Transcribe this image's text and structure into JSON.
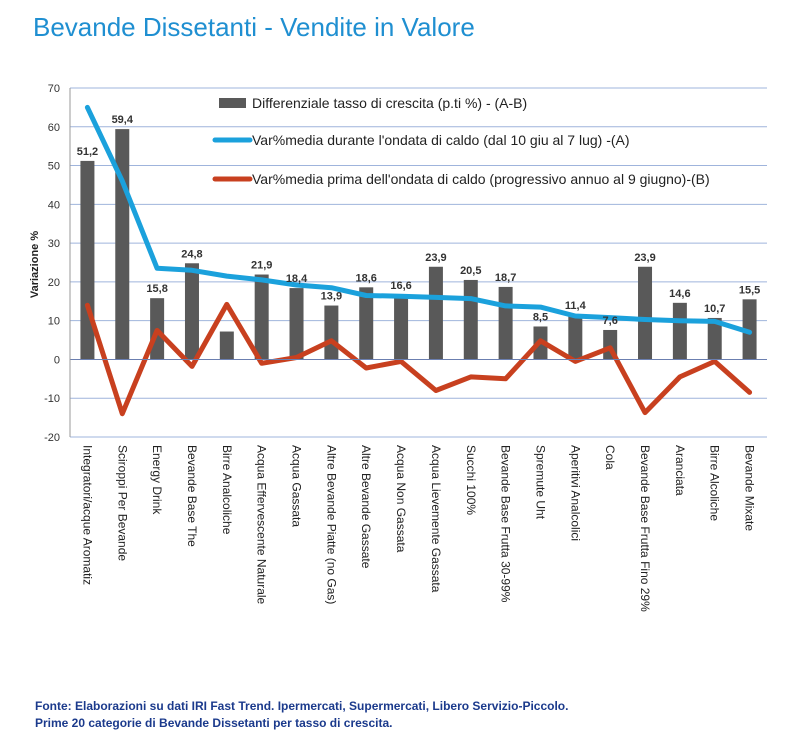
{
  "title": "Bevande Dissetanti - Vendite in Valore",
  "chart_data": {
    "type": "bar",
    "ylabel": "Variazione %",
    "ylim": [
      -20,
      70
    ],
    "yticks": [
      70,
      60,
      50,
      40,
      30,
      20,
      10,
      0,
      -10,
      -20
    ],
    "grid": true,
    "legend_position": "top",
    "categories": [
      "Integratori/acque Aromatiz",
      "Sciroppi Per Bevande",
      "Energy Drink",
      "Bevande Base The",
      "Birre Analcoliche",
      "Acqua Effervescente Naturale",
      "Acqua Gassata",
      "Altre Bevande Piatte (no Gas)",
      "Altre Bevande Gassate",
      "Acqua Non Gassata",
      "Acqua Lievemente Gassata",
      "Succhi 100%",
      "Bevande Base Frutta 30-99%",
      "Spremute Uht",
      "Aperitivi Analcolici",
      "Cola",
      "Bevande Base Frutta Fino 29%",
      "Aranciata",
      "Birre Alcoliche",
      "Bevande Mixate"
    ],
    "series": [
      {
        "name": "Differenziale tasso di crescita (p.ti %) - (A-B)",
        "type": "bar",
        "color": "#595959",
        "values": [
          51.2,
          59.4,
          15.8,
          24.8,
          7.2,
          21.9,
          18.4,
          13.9,
          18.6,
          16.6,
          23.9,
          20.5,
          18.7,
          8.5,
          11.4,
          7.6,
          23.9,
          14.6,
          10.7,
          15.5
        ],
        "labels": [
          "51,2",
          "59,4",
          "15,8",
          "24,8",
          "",
          "21,9",
          "18,4",
          "13,9",
          "18,6",
          "16,6",
          "23,9",
          "20,5",
          "18,7",
          "8,5",
          "11,4",
          "7,6",
          "23,9",
          "14,6",
          "10,7",
          "15,5"
        ]
      },
      {
        "name": "Var%media durante l'ondata di caldo (dal 10 giu al 7 lug) -(A)",
        "type": "line",
        "color": "#1ba1dc",
        "values": [
          65,
          46,
          23.5,
          23,
          21.5,
          20.5,
          19.2,
          18.5,
          16.5,
          16.3,
          16,
          15.7,
          13.8,
          13.5,
          11.2,
          10.8,
          10.3,
          10,
          9.8,
          7
        ]
      },
      {
        "name": "Var%media prima dell'ondata di caldo (progressivo annuo al 9 giugno)-(B)",
        "type": "line",
        "color": "#c8401f",
        "values": [
          14,
          -14,
          7.5,
          -1.8,
          14.2,
          -1,
          0.5,
          4.8,
          -2.2,
          -0.5,
          -8,
          -4.5,
          -5,
          4.8,
          -0.5,
          3,
          -13.7,
          -4.5,
          -0.5,
          -8.5
        ]
      }
    ]
  },
  "footer": {
    "line1": "Fonte: Elaborazioni su dati IRI Fast Trend. Ipermercati, Supermercati, Libero Servizio-Piccolo.",
    "line2": "Prime 20 categorie di Bevande Dissetanti per tasso di crescita."
  }
}
